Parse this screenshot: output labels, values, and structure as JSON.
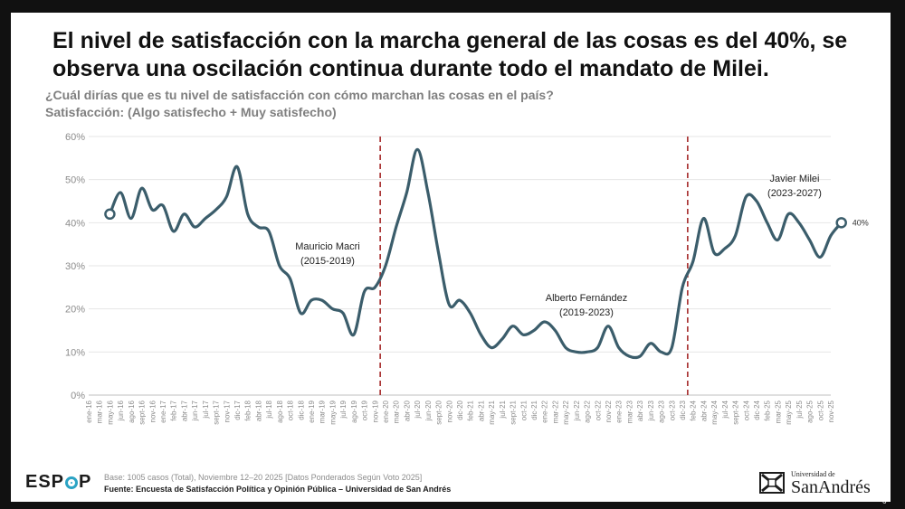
{
  "slide": {
    "title": "El nivel de satisfacción con la marcha general de las cosas es del 40%, se observa una oscilación continua durante todo el mandato de Milei.",
    "question": "¿Cuál dirías que es tu nivel de satisfacción con cómo marchan las cosas en el país?",
    "measure": "Satisfacción: (Algo satisfecho + Muy satisfecho)",
    "footnote": "Base: 1005 casos (Total), Noviembre 12–20 2025 [Datos Ponderados Según Voto 2025]",
    "source": "Fuente: Encuesta de Satisfacción Política y Opinión Pública – Universidad de San Andrés",
    "page_number": "6"
  },
  "logos": {
    "espop_left": "ESP",
    "espop_right": "P",
    "udesa_small": "Universidad de",
    "udesa_big": "SanAndrés"
  },
  "colors": {
    "line": "#3b5d6b",
    "divider": "#a52a2a",
    "grid": "#e6e6e6",
    "axis_text": "#8c8c8c"
  },
  "chart_data": {
    "type": "line",
    "ylim": [
      0,
      60
    ],
    "yticks": [
      "0%",
      "10%",
      "20%",
      "30%",
      "40%",
      "50%",
      "60%"
    ],
    "x_labels": [
      "ene-16",
      "mar-16",
      "may-16",
      "jun-16",
      "ago-16",
      "sept-16",
      "nov-16",
      "ene-17",
      "feb-17",
      "abr-17",
      "jun-17",
      "jul-17",
      "sept-17",
      "nov-17",
      "dic-17",
      "feb-18",
      "abr-18",
      "jul-18",
      "ago-18",
      "oct-18",
      "dic-18",
      "ene-19",
      "mar-19",
      "may-19",
      "jul-19",
      "ago-19",
      "oct-19",
      "nov-19",
      "ene-20",
      "mar-20",
      "abr-20",
      "jul-20",
      "jun-20",
      "sept-20",
      "nov-20",
      "dic-20",
      "feb-21",
      "abr-21",
      "may-21",
      "jul-21",
      "sept-21",
      "oct-21",
      "dic-21",
      "ene-22",
      "mar-22",
      "may-22",
      "jun-22",
      "ago-22",
      "oct-22",
      "nov-22",
      "ene-23",
      "mar-23",
      "abr-23",
      "jun-23",
      "ago-23",
      "oct-23",
      "dic-23",
      "feb-24",
      "abr-24",
      "may-24",
      "jul-24",
      "sept-24",
      "oct-24",
      "dic-24",
      "feb-25",
      "mar-25",
      "may-25",
      "jul-25",
      "ago-25",
      "oct-25",
      "nov-25"
    ],
    "series": [
      {
        "values": [
          42,
          47,
          41,
          48,
          43,
          44,
          38,
          42,
          39,
          41,
          43,
          46,
          53,
          42,
          39,
          38,
          30,
          27,
          19,
          22,
          22,
          20,
          19,
          14,
          24,
          25,
          30,
          39,
          47,
          57,
          47,
          33,
          21,
          22,
          19,
          14,
          11,
          13,
          16,
          14,
          15,
          17,
          15,
          11,
          10,
          10,
          11,
          16,
          11,
          9,
          9,
          12,
          10,
          11,
          25,
          31,
          41,
          33,
          34,
          37,
          46,
          45,
          40,
          36,
          42,
          40,
          36,
          32,
          37,
          40
        ],
        "x_start": 2,
        "end_label": "40%"
      }
    ],
    "periods": [
      {
        "label": "Mauricio Macri",
        "years": "(2015-2019)"
      },
      {
        "label": "Alberto Fernández",
        "years": "(2019-2023)"
      },
      {
        "label": "Javier Milei",
        "years": "(2023-2027)"
      }
    ],
    "dividers_after": [
      "nov-19",
      "dic-23"
    ],
    "grid": true,
    "legend": "none"
  }
}
